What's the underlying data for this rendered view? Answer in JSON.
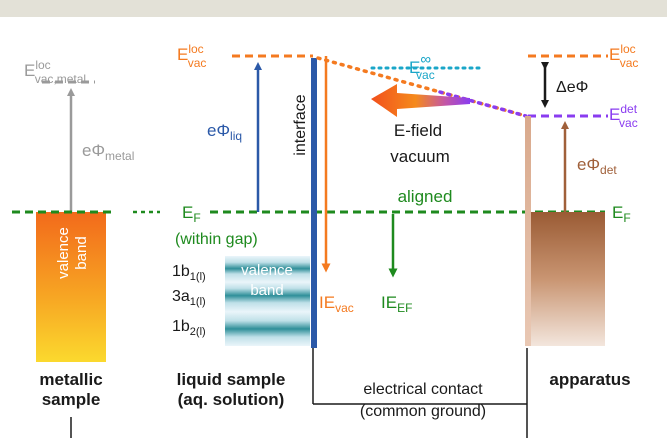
{
  "colors": {
    "orange": "#f47a20",
    "blue": "#2b59a8",
    "green": "#1e8a1e",
    "gray": "#9a9a9a",
    "cyan": "#1aa6c8",
    "purple": "#8a3cf0",
    "brown": "#a0603a",
    "black": "#1a1a1a"
  },
  "labels": {
    "evac_loc_metal": {
      "base": "E",
      "sup": "loc",
      "sub": "vac,metal"
    },
    "ephi_metal": {
      "base": "eΦ",
      "sub": "metal"
    },
    "metal_band": {
      "line1": "valence",
      "line2": "band"
    },
    "metal_caption": {
      "line1": "metallic",
      "line2": "sample"
    },
    "evac_loc_liquid": {
      "base": "E",
      "sup": "loc",
      "sub": "vac"
    },
    "ephi_liq": {
      "base": "eΦ",
      "sub": "liq"
    },
    "interface": "interface",
    "ef_liquid": {
      "base": "E",
      "sub": "F"
    },
    "within_gap": "(within gap)",
    "orbitals": [
      {
        "base": "1b",
        "sub": "1(l)"
      },
      {
        "base": "3a",
        "sub": "1(l)"
      },
      {
        "base": "1b",
        "sub": "2(l)"
      }
    ],
    "liquid_band": {
      "line1": "valence",
      "line2": "band"
    },
    "ie_vac": {
      "base": "IE",
      "sub": "vac"
    },
    "ie_ef": {
      "base": "IE",
      "sub": "EF"
    },
    "liquid_caption": {
      "line1": "liquid sample",
      "line2": "(aq. solution)"
    },
    "evac_inf": {
      "base": "E",
      "sup": "∞",
      "sub": "vac"
    },
    "efield": "E-field",
    "vacuum": "vacuum",
    "aligned": "aligned",
    "contact": {
      "line1": "electrical contact",
      "line2": "(common ground)"
    },
    "delta_ephi": "ΔeΦ",
    "evac_loc_app": {
      "base": "E",
      "sup": "loc",
      "sub": "vac"
    },
    "evac_det": {
      "base": "E",
      "sup": "det",
      "sub": "vac"
    },
    "ephi_det": {
      "base": "eΦ",
      "sub": "det"
    },
    "ef_app": {
      "base": "E",
      "sub": "F"
    },
    "apparatus_caption": "apparatus"
  }
}
